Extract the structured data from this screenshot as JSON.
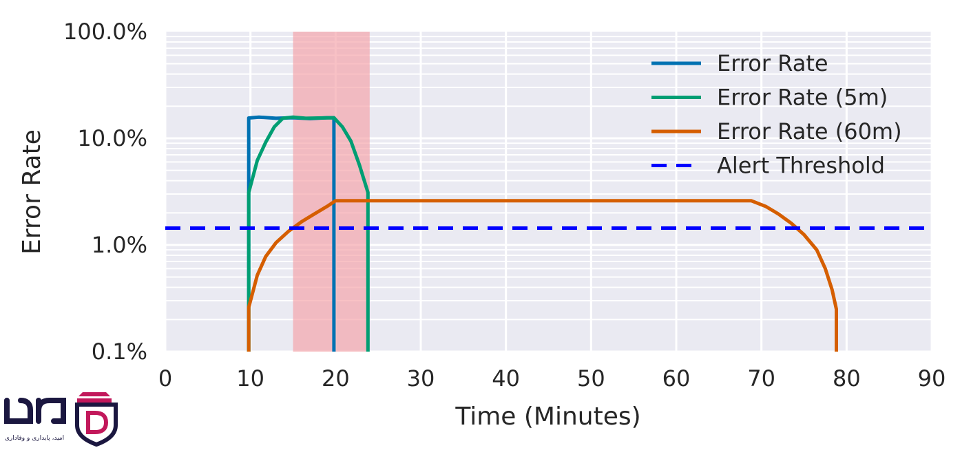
{
  "chart_data": {
    "type": "line",
    "title": "",
    "xlabel": "Time (Minutes)",
    "ylabel": "Error Rate",
    "xlim": [
      0,
      90
    ],
    "ylim": [
      0.1,
      100
    ],
    "y_scale": "log",
    "x_ticks": [
      0,
      10,
      20,
      30,
      40,
      50,
      60,
      70,
      80,
      90
    ],
    "x_tick_labels": [
      "0",
      "10",
      "20",
      "30",
      "40",
      "50",
      "60",
      "70",
      "80",
      "90"
    ],
    "y_ticks": [
      0.1,
      1,
      10,
      100
    ],
    "y_tick_labels": [
      "0.1%",
      "1.0%",
      "10.0%",
      "100.0%"
    ],
    "grid": true,
    "legend_position": "top-right",
    "highlight_region": {
      "x_start": 15,
      "x_end": 24,
      "color": "#f4a0a6"
    },
    "series": [
      {
        "name": "Error Rate",
        "color": "#0072b2",
        "style": "solid",
        "points": [
          [
            9.8,
            0.1
          ],
          [
            9.8,
            15.5
          ],
          [
            11,
            15.8
          ],
          [
            13,
            15.4
          ],
          [
            15,
            15.6
          ],
          [
            17,
            15.3
          ],
          [
            19,
            15.6
          ],
          [
            19.8,
            15.6
          ],
          [
            19.8,
            0.1
          ]
        ]
      },
      {
        "name": "Error Rate (5m)",
        "color": "#009e73",
        "style": "solid",
        "points": [
          [
            9.8,
            0.1
          ],
          [
            9.8,
            3.1
          ],
          [
            10.8,
            6.2
          ],
          [
            11.8,
            9.2
          ],
          [
            12.8,
            12.8
          ],
          [
            13.8,
            15.4
          ],
          [
            15,
            15.8
          ],
          [
            16.5,
            15.4
          ],
          [
            18,
            15.5
          ],
          [
            19.8,
            15.6
          ],
          [
            20.8,
            12.8
          ],
          [
            21.8,
            9.4
          ],
          [
            22.8,
            5.6
          ],
          [
            23.8,
            3.1
          ],
          [
            23.8,
            0.1
          ]
        ]
      },
      {
        "name": "Error Rate (60m)",
        "color": "#d55e00",
        "style": "solid",
        "points": [
          [
            9.8,
            0.1
          ],
          [
            9.8,
            0.26
          ],
          [
            10.8,
            0.52
          ],
          [
            11.8,
            0.78
          ],
          [
            13,
            1.05
          ],
          [
            14.5,
            1.35
          ],
          [
            16,
            1.65
          ],
          [
            17.5,
            1.95
          ],
          [
            19,
            2.3
          ],
          [
            20,
            2.6
          ],
          [
            24,
            2.6
          ],
          [
            40,
            2.6
          ],
          [
            60,
            2.6
          ],
          [
            68.8,
            2.6
          ],
          [
            70.5,
            2.3
          ],
          [
            72,
            1.95
          ],
          [
            73.5,
            1.6
          ],
          [
            75,
            1.25
          ],
          [
            76.5,
            0.9
          ],
          [
            77.5,
            0.6
          ],
          [
            78.3,
            0.38
          ],
          [
            78.8,
            0.25
          ],
          [
            78.8,
            0.1
          ]
        ]
      },
      {
        "name": "Alert Threshold",
        "color": "#0000ff",
        "style": "dashed",
        "points": [
          [
            0,
            1.44
          ],
          [
            90,
            1.44
          ]
        ]
      }
    ]
  },
  "logo": {
    "wordmark_color": "#1b1740",
    "accent_color": "#c2185b",
    "tagline": "امید، پایداری و وفاداری"
  }
}
